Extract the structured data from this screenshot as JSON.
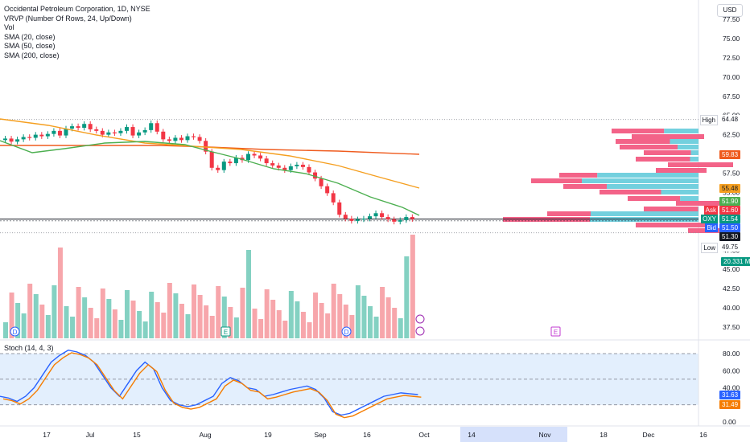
{
  "legend": {
    "symbol": "Occidental Petroleum Corporation, 1D, NYSE",
    "indicators": [
      "VRVP (Number Of Rows, 24, Up/Down)",
      "Vol",
      "SMA (20, close)",
      "SMA (50, close)",
      "SMA (200, close)"
    ]
  },
  "currency_button": "USD",
  "stoch_label": "Stoch (14, 4, 3)",
  "price_axis": {
    "ticks": [
      "77.50",
      "75.00",
      "72.50",
      "70.00",
      "67.50",
      "65.00",
      "62.50",
      "60.00",
      "57.50",
      "55.00",
      "52.50",
      "50.00",
      "47.50",
      "45.00",
      "42.50",
      "40.00",
      "37.50"
    ],
    "stoch_ticks": [
      "80.00",
      "60.00",
      "40.00",
      "20.00",
      "0.00"
    ]
  },
  "price_tags": [
    {
      "label": "",
      "value": "64.48",
      "bg": "#ffffff",
      "fg": "#131722",
      "side": "High"
    },
    {
      "label": "",
      "value": "59.83",
      "bg": "#ef5b1e",
      "fg": "#ffffff"
    },
    {
      "label": "",
      "value": "55.48",
      "bg": "#f59f20",
      "fg": "#131722"
    },
    {
      "label": "",
      "value": "51.90",
      "bg": "#4caf50",
      "fg": "#ffffff"
    },
    {
      "label": "Ask",
      "value": "51.60",
      "bg": "#f23645",
      "fg": "#ffffff"
    },
    {
      "label": "OXY",
      "value": "51.54",
      "bg": "#089981",
      "fg": "#ffffff"
    },
    {
      "label": "Bid",
      "value": "51.50",
      "bg": "#2962ff",
      "fg": "#ffffff"
    },
    {
      "label": "",
      "value": "51.30",
      "bg": "#131722",
      "fg": "#ffffff"
    },
    {
      "label": "",
      "value": "49.75",
      "bg": "#ffffff",
      "fg": "#131722",
      "side": "Low"
    },
    {
      "label": "",
      "value": "20.331 M",
      "bg": "#089981",
      "fg": "#ffffff"
    },
    {
      "label": "",
      "value": "31.63",
      "bg": "#2962ff",
      "fg": "#ffffff"
    },
    {
      "label": "",
      "value": "31.49",
      "bg": "#f57c00",
      "fg": "#ffffff"
    }
  ],
  "hilo": {
    "high": "High",
    "low": "Low"
  },
  "time_axis": [
    "17",
    "Jul",
    "15",
    "Aug",
    "19",
    "Sep",
    "16",
    "Oct",
    "14",
    "Nov",
    "18",
    "Dec",
    "16"
  ],
  "event_markers": [
    "D",
    "E",
    "D",
    "E"
  ],
  "chart_data": {
    "type": "candlestick",
    "ohlc_close": [
      62.0,
      61.6,
      61.9,
      62.2,
      62.1,
      62.5,
      62.3,
      62.6,
      63.0,
      62.4,
      63.3,
      63.6,
      63.4,
      63.9,
      63.2,
      63.0,
      62.5,
      62.8,
      62.7,
      63.0,
      63.5,
      62.4,
      62.8,
      63.1,
      64.0,
      62.9,
      61.9,
      61.7,
      62.1,
      61.8,
      62.3,
      62.2,
      61.7,
      60.3,
      58.2,
      57.9,
      59.0,
      58.8,
      59.5,
      59.2,
      60.0,
      59.8,
      59.4,
      58.8,
      58.5,
      58.2,
      57.9,
      58.4,
      58.6,
      58.3,
      57.6,
      56.8,
      55.8,
      54.9,
      53.7,
      52.1,
      51.6,
      51.3,
      51.5,
      51.6,
      51.9,
      52.3,
      51.8,
      51.5,
      51.2,
      51.4,
      51.8,
      51.54
    ],
    "sma20_last": 51.9,
    "sma50_last": 55.48,
    "sma200_last": 59.83,
    "volume_last": "20.331 M",
    "stoch_k_last": 31.63,
    "stoch_d_last": 31.49
  }
}
